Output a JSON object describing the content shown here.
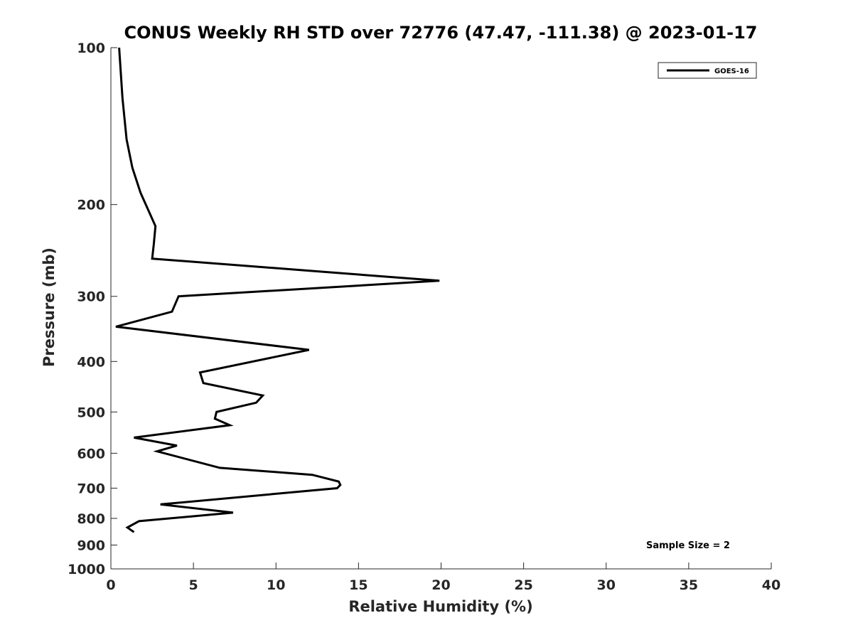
{
  "chart_data": {
    "type": "line",
    "title": "CONUS Weekly RH STD over 72776 (47.47, -111.38) @ 2023-01-17",
    "xlabel": "Relative Humidity (%)",
    "ylabel": "Pressure (mb)",
    "xlim": [
      0,
      40
    ],
    "ylim": [
      100,
      1000
    ],
    "y_scale": "log",
    "y_reversed": true,
    "x_ticks": [
      0,
      5,
      10,
      15,
      20,
      25,
      30,
      35,
      40
    ],
    "x_tick_labels": [
      "0",
      "5",
      "10",
      "15",
      "20",
      "25",
      "30",
      "35",
      "40"
    ],
    "y_ticks": [
      100,
      200,
      300,
      400,
      500,
      600,
      700,
      800,
      900,
      1000
    ],
    "y_tick_labels": [
      "100",
      "200",
      "300",
      "400",
      "500",
      "600",
      "700",
      "800",
      "900",
      "1000"
    ],
    "grid": false,
    "legend_position": "top-right",
    "annotation": "Sample Size = 2",
    "series": [
      {
        "name": "GOES-16",
        "color": "#000000",
        "points": [
          [
            0.5,
            100
          ],
          [
            0.7,
            125
          ],
          [
            0.95,
            150
          ],
          [
            1.3,
            170
          ],
          [
            1.8,
            190
          ],
          [
            2.7,
            220
          ],
          [
            2.6,
            238
          ],
          [
            2.5,
            254
          ],
          [
            19.9,
            280
          ],
          [
            4.1,
            300
          ],
          [
            3.7,
            321
          ],
          [
            0.3,
            343
          ],
          [
            12.0,
            380
          ],
          [
            5.4,
            420
          ],
          [
            5.6,
            440
          ],
          [
            9.2,
            465
          ],
          [
            8.8,
            480
          ],
          [
            6.4,
            500
          ],
          [
            6.3,
            515
          ],
          [
            7.2,
            530
          ],
          [
            1.4,
            560
          ],
          [
            4.0,
            580
          ],
          [
            2.8,
            595
          ],
          [
            6.6,
            640
          ],
          [
            12.2,
            660
          ],
          [
            13.8,
            680
          ],
          [
            13.9,
            690
          ],
          [
            13.7,
            700
          ],
          [
            3.0,
            752
          ],
          [
            7.4,
            780
          ],
          [
            1.7,
            810
          ],
          [
            1.0,
            833
          ],
          [
            1.4,
            850
          ]
        ]
      }
    ]
  }
}
